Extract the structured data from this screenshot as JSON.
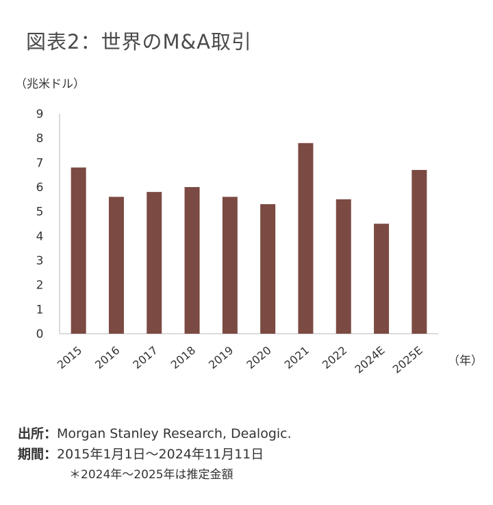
{
  "title": "図表2：世界のM&A取引",
  "chart_data": {
    "type": "bar",
    "title": "図表2：世界のM&A取引",
    "ylabel": "（兆米ドル）",
    "xlabel": "（年）",
    "categories": [
      "2015",
      "2016",
      "2017",
      "2018",
      "2019",
      "2020",
      "2021",
      "2022",
      "2024E",
      "2025E"
    ],
    "values": [
      6.8,
      5.6,
      5.8,
      6.0,
      5.6,
      5.3,
      7.8,
      5.5,
      4.5,
      6.7
    ],
    "ylim": [
      0,
      9
    ],
    "yticks": [
      "0",
      "1",
      "2",
      "3",
      "4",
      "5",
      "6",
      "7",
      "8",
      "9"
    ],
    "grid": false,
    "bar_color": "#7b4a42"
  },
  "footer": {
    "source_label": "出所：",
    "source_text": "Morgan Stanley Research, Dealogic.",
    "period_label": "期間：",
    "period_text": "2015年1月1日～2024年11月11日",
    "note": "＊2024年～2025年は推定金額"
  }
}
